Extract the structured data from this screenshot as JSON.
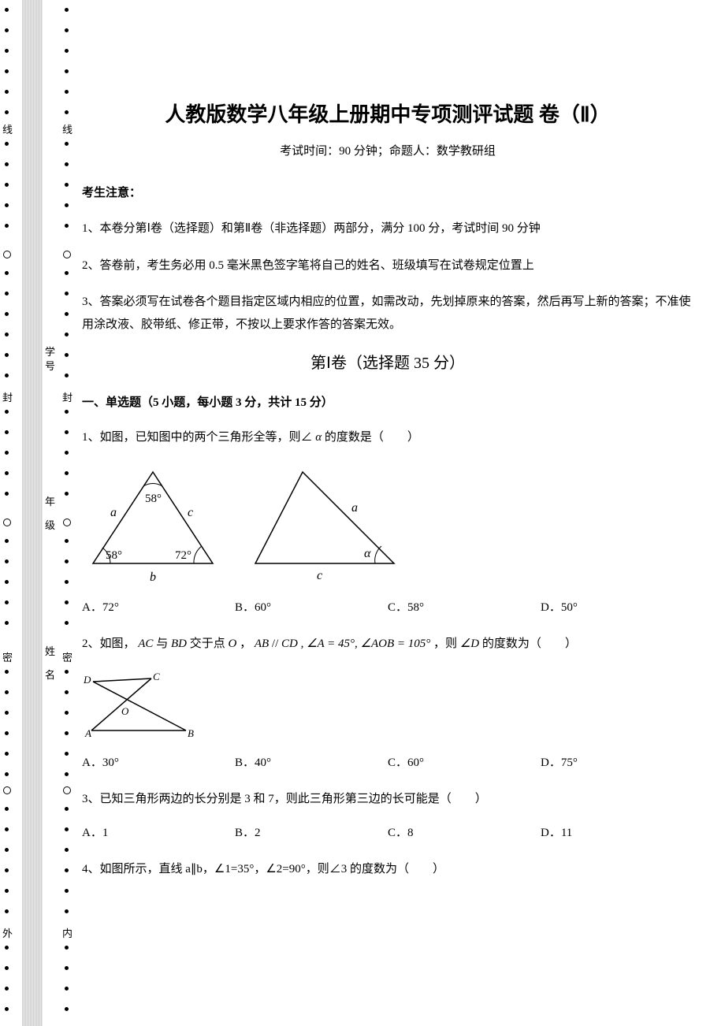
{
  "header": {
    "title": "人教版数学八年级上册期中专项测评试题 卷（Ⅱ）",
    "subtitle": "考试时间：90 分钟；命题人：数学教研组"
  },
  "notice": {
    "head": "考生注意：",
    "lines": [
      "1、本卷分第Ⅰ卷（选择题）和第Ⅱ卷（非选择题）两部分，满分 100 分，考试时间 90 分钟",
      "2、答卷前，考生务必用 0.5 毫米黑色签字笔将自己的姓名、班级填写在试卷规定位置上",
      "3、答案必须写在试卷各个题目指定区域内相应的位置，如需改动，先划掉原来的答案，然后再写上新的答案；不准使用涂改液、胶带纸、修正带，不按以上要求作答的答案无效。"
    ]
  },
  "sectionI": {
    "head": "第Ⅰ卷（选择题  35 分）",
    "groupHead": "一、单选题（5 小题，每小题 3 分，共计 15 分）",
    "q1": {
      "stem_pre": "1、如图，已知图中的两个三角形全等，则∠",
      "alpha": "α",
      "stem_post": " 的度数是（　　）",
      "triangle1": {
        "apex_angle": "58°",
        "left_angle": "58°",
        "right_angle": "72°",
        "side_left": "a",
        "side_right": "c",
        "side_bottom": "b"
      },
      "triangle2": {
        "side_right": "a",
        "side_bottom": "c",
        "right_angle": "α"
      },
      "opts": {
        "A": "A．72°",
        "B": "B．60°",
        "C": "C．58°",
        "D": "D．50°"
      }
    },
    "q2": {
      "stem_a": "2、如图， ",
      "ac": "AC",
      "stem_b": " 与 ",
      "bd": "BD",
      "stem_c": " 交于点 ",
      "o": "O",
      "stem_d": " ， ",
      "ab": "AB",
      "par": "//",
      "cd": "CD",
      "cond": ", ∠A = 45°, ∠AOB = 105°",
      "stem_e": " ，则 ",
      "angD": "∠D",
      "stem_f": " 的度数为（　　）",
      "labels": {
        "A": "A",
        "B": "B",
        "C": "C",
        "D": "D",
        "O": "O"
      },
      "opts": {
        "A": "A．30°",
        "B": "B．40°",
        "C": "C．60°",
        "D": "D．75°"
      }
    },
    "q3": {
      "stem": "3、已知三角形两边的长分别是 3 和 7，则此三角形第三边的长可能是（　　）",
      "opts": {
        "A": "A．1",
        "B": "B．2",
        "C": "C．8",
        "D": "D．11"
      }
    },
    "q4": {
      "stem": "4、如图所示，直线 a∥b，∠1=35°，∠2=90°，则∠3 的度数为（　　）"
    }
  },
  "margin": {
    "left_chars": {
      "c1": "线",
      "c2": "封",
      "c3": "密",
      "c4": "外"
    },
    "mid_chars": {
      "c1": "学",
      "c2": "号",
      "c3": "年",
      "c4": "级",
      "c5": "姓",
      "c6": "名"
    },
    "right_chars": {
      "c1": "线",
      "c2": "封",
      "c3": "密",
      "c4": "内"
    },
    "colors": {
      "strip": "#e0e0e0",
      "dot": "#000000"
    }
  }
}
